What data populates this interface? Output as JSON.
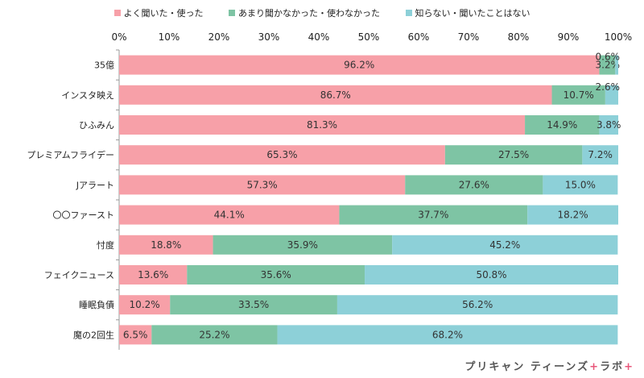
{
  "chart_data": {
    "type": "bar",
    "orientation": "horizontal",
    "stacked": true,
    "xlim": [
      0,
      100
    ],
    "x_ticks": [
      "0%",
      "10%",
      "20%",
      "30%",
      "40%",
      "50%",
      "60%",
      "70%",
      "80%",
      "90%",
      "100%"
    ],
    "categories": [
      "35億",
      "インスタ映え",
      "ひふみん",
      "プレミアムフライデー",
      "Jアラート",
      "〇〇ファースト",
      "忖度",
      "フェイクニュース",
      "睡眠負債",
      "魔の2回生"
    ],
    "series": [
      {
        "name": "よく聞いた・使った",
        "color": "#f7a0a8",
        "values": [
          96.2,
          86.7,
          81.3,
          65.3,
          57.3,
          44.1,
          18.8,
          13.6,
          10.2,
          6.5
        ],
        "labels": [
          "96.2%",
          "86.7%",
          "81.3%",
          "65.3%",
          "57.3%",
          "44.1%",
          "18.8%",
          "13.6%",
          "10.2%",
          "6.5%"
        ]
      },
      {
        "name": "あまり聞かなかった・使わなかった",
        "color": "#7ec4a4",
        "values": [
          3.2,
          10.7,
          14.9,
          27.5,
          27.6,
          37.7,
          35.9,
          35.6,
          33.5,
          25.2
        ],
        "labels": [
          "3.2%",
          "10.7%",
          "14.9%",
          "27.5%",
          "27.6%",
          "37.7%",
          "35.9%",
          "35.6%",
          "33.5%",
          "25.2%"
        ]
      },
      {
        "name": "知らない・聞いたことはない",
        "color": "#8dd0d8",
        "values": [
          0.6,
          2.6,
          3.8,
          7.2,
          15.0,
          18.2,
          45.2,
          50.8,
          56.2,
          68.2
        ],
        "labels": [
          "0.6%",
          "2.6%",
          "3.8%",
          "7.2%",
          "15.0%",
          "18.2%",
          "45.2%",
          "50.8%",
          "56.2%",
          "68.2%"
        ]
      }
    ],
    "legend": "top",
    "grid": false
  },
  "brand": {
    "text": "プリキャン ティーンズ",
    "accent1": "+",
    "suffix": "ラボ",
    "accent2": "+"
  }
}
